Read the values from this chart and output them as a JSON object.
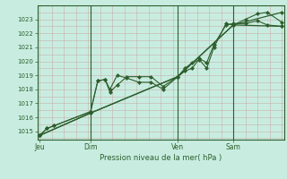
{
  "title": "Pression niveau de la mer( hPa )",
  "bg_color": "#c8ede0",
  "line_color": "#2d5e2d",
  "grid_color": "#c8a8a8",
  "ylim": [
    1014.4,
    1023.9
  ],
  "yticks": [
    1015,
    1016,
    1017,
    1018,
    1019,
    1020,
    1021,
    1022,
    1023
  ],
  "xtick_labels": [
    "Jeu",
    "Dim",
    "Ven",
    "Sam"
  ],
  "xtick_pos": [
    0.0,
    0.21,
    0.57,
    0.8
  ],
  "vline_positions": [
    0.21,
    0.57,
    0.8
  ],
  "line1_x": [
    0.0,
    0.03,
    0.06,
    0.21,
    0.24,
    0.27,
    0.29,
    0.32,
    0.36,
    0.41,
    0.46,
    0.51,
    0.57,
    0.6,
    0.63,
    0.66,
    0.69,
    0.72,
    0.77,
    0.8,
    0.85,
    0.9,
    0.94,
    1.0
  ],
  "line1_y": [
    1014.7,
    1015.2,
    1015.4,
    1016.4,
    1018.6,
    1018.7,
    1017.8,
    1018.3,
    1018.9,
    1018.9,
    1018.9,
    1018.2,
    1018.9,
    1019.5,
    1019.9,
    1020.1,
    1019.5,
    1021.0,
    1022.7,
    1022.6,
    1023.0,
    1023.4,
    1023.5,
    1022.8
  ],
  "line2_x": [
    0.0,
    0.03,
    0.06,
    0.21,
    0.24,
    0.27,
    0.29,
    0.32,
    0.36,
    0.41,
    0.46,
    0.51,
    0.57,
    0.6,
    0.63,
    0.66,
    0.69,
    0.72,
    0.77,
    0.8,
    0.85,
    0.9,
    0.94,
    1.0
  ],
  "line2_y": [
    1014.7,
    1015.2,
    1015.4,
    1016.4,
    1018.6,
    1018.7,
    1018.0,
    1019.0,
    1018.8,
    1018.5,
    1018.5,
    1018.0,
    1018.9,
    1019.3,
    1019.5,
    1020.2,
    1019.9,
    1021.2,
    1022.6,
    1022.7,
    1022.7,
    1022.9,
    1022.6,
    1022.5
  ],
  "line3_x": [
    0.0,
    0.21,
    0.57,
    0.8,
    1.0
  ],
  "line3_y": [
    1014.7,
    1016.3,
    1018.9,
    1022.6,
    1022.5
  ],
  "line4_x": [
    0.0,
    0.21,
    0.57,
    0.8,
    1.0
  ],
  "line4_y": [
    1014.7,
    1016.3,
    1018.9,
    1022.6,
    1023.5
  ]
}
